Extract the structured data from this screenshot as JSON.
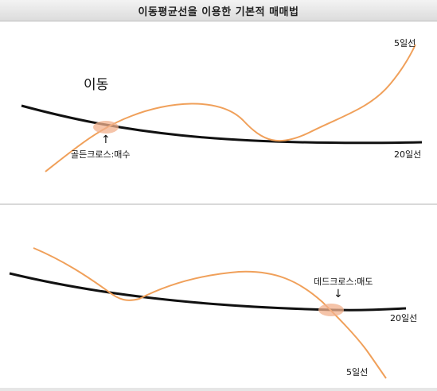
{
  "title": "이동평균선을 이용한 기본적 매매법",
  "colors": {
    "short_ma": "#f0a05a",
    "long_ma": "#111111",
    "cross_marker": "#f2b08c",
    "title_bg": "#e4e4e4"
  },
  "panel_top": {
    "heading": "이동",
    "short_ma_label": "5일선",
    "long_ma_label": "20일선",
    "cross_label": "골든크로스:매수",
    "arrow_symbol": "↑"
  },
  "panel_bottom": {
    "short_ma_label": "5일선",
    "long_ma_label": "20일선",
    "cross_label": "데드크로스:매도",
    "arrow_symbol": "↓"
  }
}
